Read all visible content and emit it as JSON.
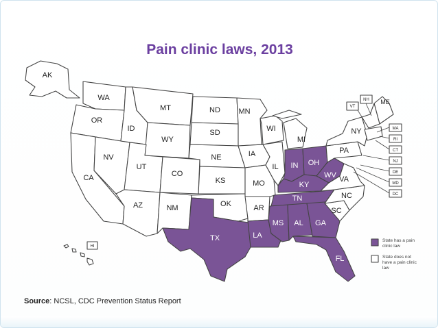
{
  "title": "Pain clinic laws, 2013",
  "source_label": "Source",
  "source_text": ": NCSL, CDC Prevention Status Report",
  "colors": {
    "has_law": "#7a5496",
    "no_law": "#ffffff",
    "title": "#6b3fa0"
  },
  "legend": {
    "has_law_line1": "State has a pain",
    "has_law_line2": "clinic law",
    "no_law_line1": "State does not",
    "no_law_line2": "have a pain clinic",
    "no_law_line3": "law"
  },
  "states": {
    "AK": "AK",
    "HI": "HI",
    "WA": "WA",
    "OR": "OR",
    "CA": "CA",
    "NV": "NV",
    "ID": "ID",
    "MT": "MT",
    "WY": "WY",
    "UT": "UT",
    "AZ": "AZ",
    "CO": "CO",
    "NM": "NM",
    "ND": "ND",
    "SD": "SD",
    "NE": "NE",
    "KS": "KS",
    "OK": "OK",
    "TX": "TX",
    "MN": "MN",
    "IA": "IA",
    "MO": "MO",
    "AR": "AR",
    "LA": "LA",
    "WI": "WI",
    "IL": "IL",
    "MI": "MI",
    "IN": "IN",
    "OH": "OH",
    "KY": "KY",
    "TN": "TN",
    "MS": "MS",
    "AL": "AL",
    "GA": "GA",
    "FL": "FL",
    "SC": "SC",
    "NC": "NC",
    "VA": "VA",
    "WV": "WV",
    "PA": "PA",
    "NY": "NY",
    "VT": "VT",
    "NH": "NH",
    "ME": "ME",
    "MA": "MA",
    "RI": "RI",
    "CT": "CT",
    "NJ": "NJ",
    "DE": "DE",
    "MD": "MD",
    "DC": "DC"
  },
  "states_with_law": [
    "TX",
    "LA",
    "MS",
    "AL",
    "GA",
    "FL",
    "TN",
    "KY",
    "WV",
    "OH",
    "IN"
  ]
}
